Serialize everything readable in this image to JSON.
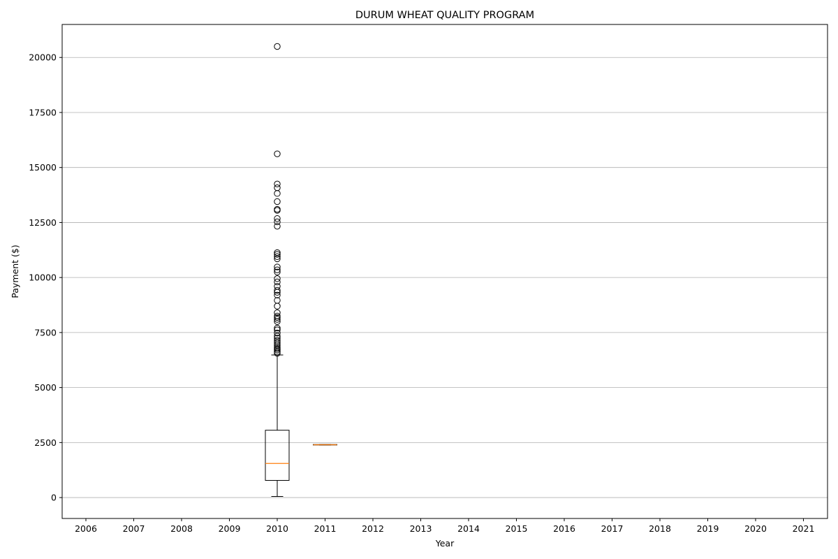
{
  "chart_data": {
    "type": "boxplot",
    "title": "DURUM WHEAT QUALITY PROGRAM",
    "xlabel": "Year",
    "ylabel": "Payment ($)",
    "categories": [
      "2006",
      "2007",
      "2008",
      "2009",
      "2010",
      "2011",
      "2012",
      "2013",
      "2014",
      "2015",
      "2016",
      "2017",
      "2018",
      "2019",
      "2020",
      "2021"
    ],
    "ylim": [
      -950,
      21500
    ],
    "yticks": [
      0,
      2500,
      5000,
      7500,
      10000,
      12500,
      15000,
      17500,
      20000
    ],
    "grid": "y",
    "boxes": [
      {
        "category": "2010",
        "whisker_low": 50,
        "q1": 780,
        "median": 1550,
        "q3": 3060,
        "whisker_high": 6480,
        "outliers": [
          6560,
          6620,
          6700,
          6760,
          6820,
          6900,
          6980,
          7060,
          7150,
          7250,
          7340,
          7480,
          7620,
          7700,
          8000,
          8100,
          8180,
          8250,
          8400,
          8700,
          8960,
          9200,
          9330,
          9420,
          9600,
          9800,
          9950,
          10250,
          10350,
          10480,
          10850,
          10950,
          11050,
          11130,
          12330,
          12530,
          12680,
          13050,
          13100,
          13450,
          13820,
          14080,
          14250,
          15620,
          20500
        ]
      },
      {
        "category": "2011",
        "whisker_low": 2390,
        "q1": 2390,
        "median": 2400,
        "q3": 2410,
        "whisker_high": 2410,
        "outliers": []
      }
    ],
    "colors": {
      "box": "#000000",
      "median": "#ff7f0e",
      "grid": "#b0b0b0"
    }
  }
}
